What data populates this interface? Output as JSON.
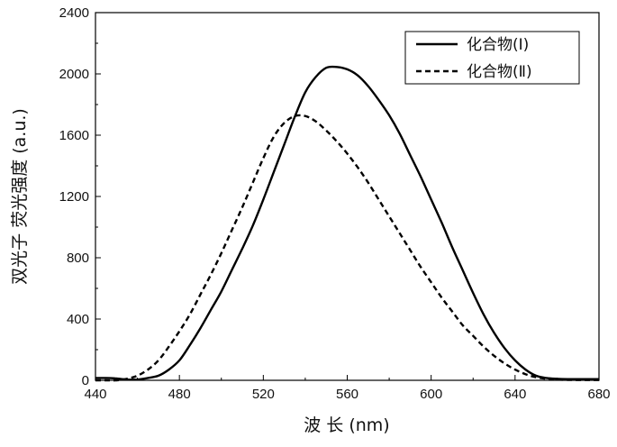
{
  "chart_data": {
    "type": "line",
    "xlabel": "波 长 (nm)",
    "ylabel": "双光子 荧光强度 (a.u.)",
    "xlim": [
      440,
      680
    ],
    "ylim": [
      0,
      2400
    ],
    "xticks": [
      440,
      480,
      520,
      560,
      600,
      640,
      680
    ],
    "yticks": [
      0,
      400,
      800,
      1200,
      1600,
      2000,
      2400
    ],
    "grid": false,
    "legend_position": "top-right",
    "series": [
      {
        "name": "化合物(Ⅰ)",
        "style": "solid",
        "x": [
          440,
          445,
          450,
          455,
          460,
          465,
          470,
          475,
          480,
          485,
          490,
          495,
          500,
          505,
          510,
          515,
          520,
          525,
          530,
          535,
          540,
          545,
          550,
          555,
          560,
          565,
          570,
          575,
          580,
          585,
          590,
          595,
          600,
          605,
          610,
          615,
          620,
          625,
          630,
          635,
          640,
          645,
          650,
          655,
          660,
          665,
          670,
          675,
          680
        ],
        "y": [
          15,
          15,
          12,
          5,
          5,
          15,
          30,
          70,
          130,
          230,
          340,
          460,
          580,
          720,
          860,
          1010,
          1180,
          1360,
          1540,
          1720,
          1880,
          1980,
          2040,
          2045,
          2030,
          1990,
          1920,
          1830,
          1730,
          1610,
          1470,
          1330,
          1180,
          1030,
          870,
          720,
          570,
          430,
          310,
          210,
          130,
          70,
          30,
          15,
          10,
          8,
          8,
          8,
          8
        ]
      },
      {
        "name": "化合物(Ⅱ)",
        "style": "dashed",
        "x": [
          440,
          445,
          450,
          455,
          460,
          465,
          470,
          475,
          480,
          485,
          490,
          495,
          500,
          505,
          510,
          515,
          520,
          525,
          530,
          535,
          540,
          545,
          550,
          555,
          560,
          565,
          570,
          575,
          580,
          585,
          590,
          595,
          600,
          605,
          610,
          615,
          620,
          625,
          630,
          635,
          640,
          645,
          650,
          655,
          660,
          665,
          670,
          675,
          680
        ],
        "y": [
          0,
          0,
          0,
          10,
          30,
          70,
          130,
          220,
          320,
          430,
          560,
          690,
          830,
          980,
          1130,
          1290,
          1450,
          1590,
          1680,
          1725,
          1725,
          1690,
          1630,
          1560,
          1480,
          1390,
          1290,
          1180,
          1070,
          960,
          850,
          740,
          640,
          540,
          450,
          360,
          290,
          220,
          160,
          110,
          70,
          40,
          20,
          10,
          5,
          3,
          2,
          2,
          2
        ]
      }
    ]
  }
}
